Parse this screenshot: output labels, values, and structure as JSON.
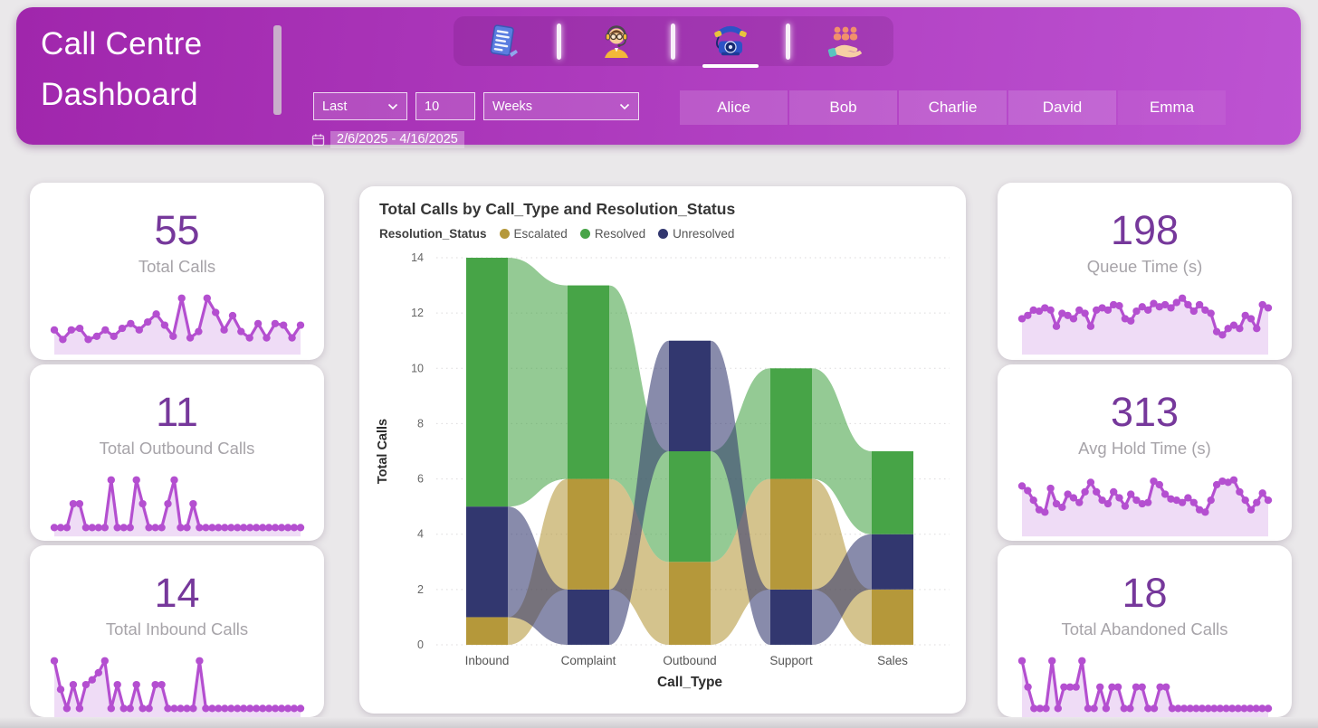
{
  "page": {
    "background": "#eae8ea"
  },
  "header": {
    "title_line1": "Call Centre",
    "title_line2": "Dashboard",
    "nav_tabs": [
      {
        "icon": "notes-icon",
        "active": false
      },
      {
        "icon": "agent-headset-icon",
        "active": false
      },
      {
        "icon": "phone-icon",
        "active": true
      },
      {
        "icon": "team-hand-icon",
        "active": false
      }
    ],
    "filters": {
      "range_type": "Last",
      "range_count": "10",
      "range_unit": "Weeks",
      "date_range": "2/6/2025 - 4/16/2025"
    },
    "agents": [
      "Alice",
      "Bob",
      "Charlie",
      "David",
      "Emma"
    ]
  },
  "kpi_cards": {
    "left": [
      {
        "value": "55",
        "label": "Total Calls",
        "sparkline": [
          1,
          0.4,
          1,
          1.1,
          0.4,
          0.6,
          1,
          0.6,
          1.1,
          1.4,
          1,
          1.5,
          2,
          1.3,
          0.6,
          3,
          0.5,
          0.9,
          3,
          2.1,
          1,
          1.9,
          0.9,
          0.5,
          1.4,
          0.5,
          1.4,
          1.3,
          0.5,
          1.3
        ]
      },
      {
        "value": "11",
        "label": "Total Outbound Calls",
        "sparkline": [
          0,
          0,
          0,
          1,
          1,
          0,
          0,
          0,
          0,
          2,
          0,
          0,
          0,
          2,
          1,
          0,
          0,
          0,
          1,
          2,
          0,
          0,
          1,
          0,
          0,
          0,
          0,
          0,
          0,
          0,
          0,
          0,
          0,
          0,
          0,
          0,
          0,
          0,
          0,
          0
        ]
      },
      {
        "value": "14",
        "label": "Total Inbound Calls",
        "sparkline": [
          2,
          0.8,
          0,
          1,
          0,
          1,
          1.2,
          1.5,
          2,
          0,
          1,
          0,
          0,
          1,
          0,
          0,
          1,
          1,
          0,
          0,
          0,
          0,
          0,
          2,
          0,
          0,
          0,
          0,
          0,
          0,
          0,
          0,
          0,
          0,
          0,
          0,
          0,
          0,
          0,
          0
        ]
      }
    ],
    "right": [
      {
        "value": "198",
        "label": "Queue Time (s)",
        "sparkline": [
          5,
          5.6,
          6.6,
          6.4,
          7,
          6.6,
          3.6,
          6,
          5.6,
          5,
          6.6,
          6,
          3.6,
          6.6,
          7,
          6.6,
          7.6,
          7.4,
          5,
          4.6,
          6.4,
          7.2,
          6.6,
          7.8,
          7.2,
          7.6,
          7,
          8,
          8.8,
          7.6,
          6.4,
          7.6,
          6.6,
          6,
          2.6,
          2,
          3.2,
          3.8,
          3.2,
          5.6,
          5,
          3.2,
          7.6,
          7
        ]
      },
      {
        "value": "313",
        "label": "Avg Hold Time (s)",
        "sparkline": [
          7,
          6.2,
          4.6,
          3,
          2.6,
          6.6,
          4,
          3.4,
          5.6,
          5,
          4.2,
          6,
          7.6,
          6,
          4.6,
          4,
          6,
          5,
          3.6,
          5.6,
          4.6,
          4,
          4.2,
          7.8,
          7.2,
          5.6,
          4.8,
          4.6,
          4.2,
          5,
          4.2,
          3,
          2.6,
          4.6,
          7.2,
          7.8,
          7.6,
          8,
          6,
          4.6,
          3,
          4.2,
          5.8,
          4.6
        ]
      },
      {
        "value": "18",
        "label": "Total Abandoned Calls",
        "sparkline": [
          2,
          0.9,
          0,
          0,
          0,
          2,
          0,
          0.9,
          0.9,
          0.9,
          2,
          0,
          0,
          0.9,
          0,
          0.9,
          0.9,
          0,
          0,
          0.9,
          0.9,
          0,
          0,
          0.9,
          0.9,
          0,
          0,
          0,
          0,
          0,
          0,
          0,
          0,
          0,
          0,
          0,
          0,
          0,
          0,
          0,
          0,
          0
        ]
      }
    ]
  },
  "chart_data": {
    "type": "ribbon",
    "title": "Total Calls by Call_Type and Resolution_Status",
    "legend_title": "Resolution_Status",
    "legend_position": "top",
    "grid": true,
    "xlabel": "Call_Type",
    "ylabel": "Total Calls",
    "ylim": [
      0,
      14
    ],
    "ytick_step": 2,
    "categories": [
      "Inbound",
      "Complaint",
      "Outbound",
      "Support",
      "Sales"
    ],
    "series": [
      {
        "name": "Escalated",
        "color": "#b5983a",
        "values": [
          1,
          4,
          3,
          4,
          2
        ]
      },
      {
        "name": "Resolved",
        "color": "#47a447",
        "values": [
          9,
          7,
          4,
          4,
          3
        ]
      },
      {
        "name": "Unresolved",
        "color": "#32376f",
        "values": [
          4,
          2,
          4,
          2,
          2
        ]
      }
    ],
    "totals": [
      14,
      13,
      11,
      10,
      7
    ],
    "stack_bottom_to_top": [
      [
        "Escalated",
        "Unresolved",
        "Resolved"
      ],
      [
        "Unresolved",
        "Escalated",
        "Resolved"
      ],
      [
        "Escalated",
        "Resolved",
        "Unresolved"
      ],
      [
        "Unresolved",
        "Escalated",
        "Resolved"
      ],
      [
        "Escalated",
        "Unresolved",
        "Resolved"
      ]
    ]
  },
  "styles": {
    "header_gradient_left": "#a026ac",
    "header_gradient_right": "#bd53d2",
    "kpi_number_color": "#76389b",
    "kpi_label_color": "#a7a4a9",
    "sparkline_color": "#b44fd0",
    "sparkline_fill": "#efdcf6"
  }
}
